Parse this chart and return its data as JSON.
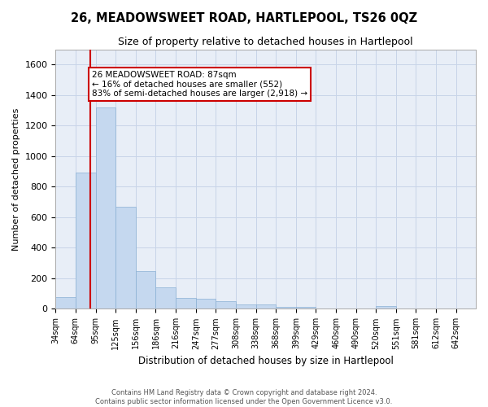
{
  "title": "26, MEADOWSWEET ROAD, HARTLEPOOL, TS26 0QZ",
  "subtitle": "Size of property relative to detached houses in Hartlepool",
  "xlabel": "Distribution of detached houses by size in Hartlepool",
  "ylabel": "Number of detached properties",
  "bar_color": "#c5d8ef",
  "bar_edge_color": "#8ab0d4",
  "grid_color": "#c8d4e8",
  "bg_color": "#e8eef7",
  "vline_x": 87,
  "vline_color": "#cc0000",
  "annotation_text": "26 MEADOWSWEET ROAD: 87sqm\n← 16% of detached houses are smaller (552)\n83% of semi-detached houses are larger (2,918) →",
  "annotation_box_color": "#cc0000",
  "bin_edges": [
    34,
    64,
    95,
    125,
    156,
    186,
    216,
    247,
    277,
    308,
    338,
    368,
    399,
    429,
    460,
    490,
    520,
    551,
    581,
    612,
    642,
    672
  ],
  "counts": [
    75,
    890,
    1320,
    670,
    245,
    140,
    70,
    65,
    50,
    27,
    27,
    13,
    13,
    0,
    0,
    0,
    20,
    0,
    0,
    0,
    0
  ],
  "ylim": [
    0,
    1700
  ],
  "yticks": [
    0,
    200,
    400,
    600,
    800,
    1000,
    1200,
    1400,
    1600
  ],
  "tick_labels": [
    "34sqm",
    "64sqm",
    "95sqm",
    "125sqm",
    "156sqm",
    "186sqm",
    "216sqm",
    "247sqm",
    "277sqm",
    "308sqm",
    "338sqm",
    "368sqm",
    "399sqm",
    "429sqm",
    "460sqm",
    "490sqm",
    "520sqm",
    "551sqm",
    "581sqm",
    "612sqm",
    "642sqm"
  ],
  "footer_text": "Contains HM Land Registry data © Crown copyright and database right 2024.\nContains public sector information licensed under the Open Government Licence v3.0.",
  "fig_width": 6.0,
  "fig_height": 5.0,
  "dpi": 100
}
